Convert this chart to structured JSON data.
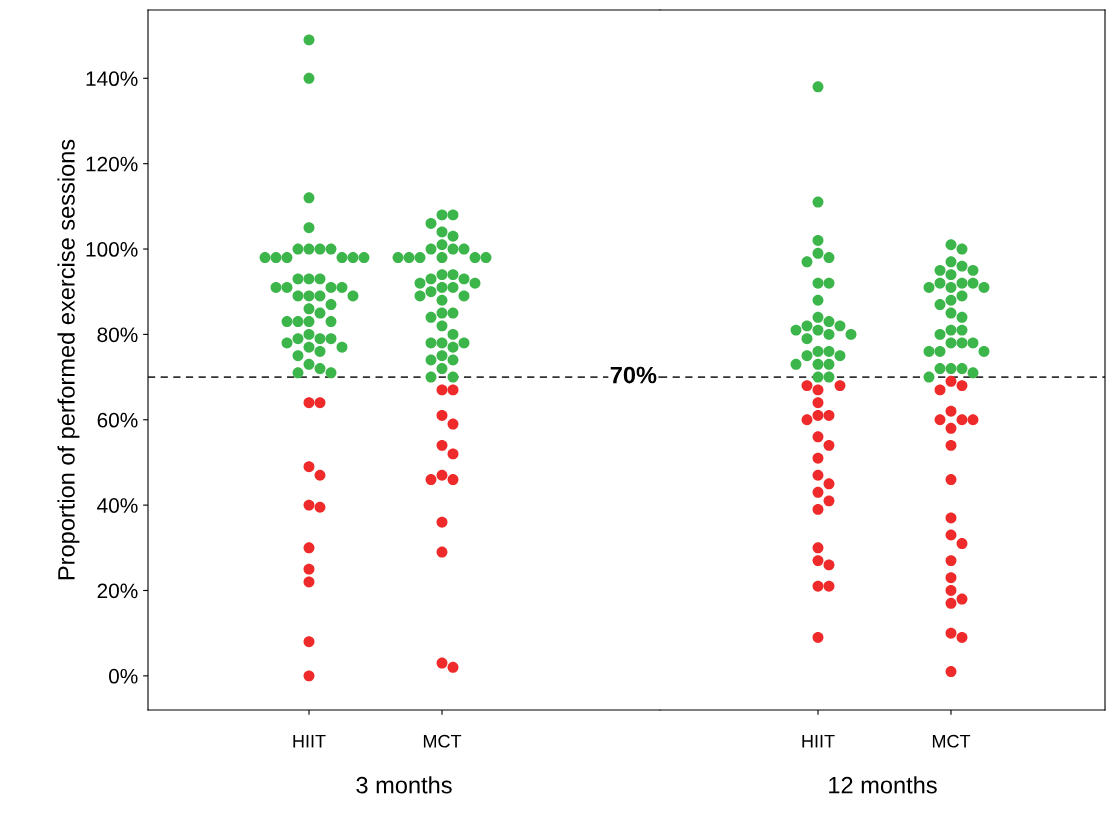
{
  "chart_data": [
    {
      "type": "scatter",
      "ylabel": "Proportion of performed exercise sessions",
      "xlabel": "3 months",
      "categories": [
        "HIIT",
        "MCT"
      ],
      "ylim": [
        -8,
        156
      ],
      "yticks": [
        {
          "value": 0,
          "label": "0%"
        },
        {
          "value": 20,
          "label": "20%"
        },
        {
          "value": 40,
          "label": "40%"
        },
        {
          "value": 60,
          "label": "60%"
        },
        {
          "value": 80,
          "label": "80%"
        },
        {
          "value": 100,
          "label": "100%"
        },
        {
          "value": 120,
          "label": "120%"
        },
        {
          "value": 140,
          "label": "140%"
        }
      ],
      "marker": "circle",
      "ref_lines": [
        {
          "axis": "y",
          "value": 70,
          "label": "70%",
          "line_style": "dashed",
          "color": "#333333"
        }
      ],
      "series": [
        {
          "color": "#3cb54a",
          "x": [
            "HIIT",
            "HIIT",
            "HIIT",
            "HIIT",
            "HIIT",
            "HIIT",
            "HIIT",
            "HIIT",
            "HIIT",
            "HIIT",
            "HIIT",
            "HIIT",
            "HIIT",
            "HIIT",
            "HIIT",
            "HIIT",
            "HIIT",
            "HIIT",
            "HIIT",
            "HIIT",
            "HIIT",
            "HIIT",
            "HIIT",
            "HIIT",
            "HIIT",
            "HIIT",
            "HIIT",
            "HIIT",
            "HIIT",
            "HIIT",
            "HIIT",
            "HIIT",
            "HIIT",
            "HIIT",
            "HIIT",
            "HIIT",
            "HIIT",
            "HIIT",
            "HIIT",
            "HIIT",
            "HIIT",
            "HIIT",
            "HIIT",
            "HIIT",
            "HIIT",
            "MCT",
            "MCT",
            "MCT",
            "MCT",
            "MCT",
            "MCT",
            "MCT",
            "MCT",
            "MCT",
            "MCT",
            "MCT",
            "MCT",
            "MCT",
            "MCT",
            "MCT",
            "MCT",
            "MCT",
            "MCT",
            "MCT",
            "MCT",
            "MCT",
            "MCT",
            "MCT",
            "MCT",
            "MCT",
            "MCT",
            "MCT",
            "MCT",
            "MCT",
            "MCT",
            "MCT",
            "MCT",
            "MCT",
            "MCT",
            "MCT",
            "MCT",
            "MCT",
            "MCT",
            "MCT",
            "MCT",
            "MCT",
            "MCT"
          ],
          "values": [
            149,
            140,
            112,
            105,
            100,
            100,
            100,
            100,
            98,
            98,
            98,
            98,
            98,
            98,
            93,
            93,
            93,
            91,
            91,
            91,
            91,
            89,
            89,
            89,
            89,
            87,
            86,
            85,
            83,
            83,
            83,
            83,
            80,
            79,
            79,
            79,
            78,
            77,
            77,
            76,
            75,
            73,
            72,
            71,
            71,
            108,
            108,
            106,
            104,
            103,
            101,
            100,
            100,
            100,
            98,
            98,
            98,
            98,
            98,
            98,
            94,
            94,
            93,
            93,
            92,
            92,
            91,
            91,
            90,
            89,
            89,
            88,
            85,
            85,
            84,
            82,
            80,
            78,
            78,
            78,
            77,
            75,
            74,
            74,
            72,
            70,
            70
          ]
        },
        {
          "color": "#ee2a2a",
          "x": [
            "HIIT",
            "HIIT",
            "HIIT",
            "HIIT",
            "HIIT",
            "HIIT",
            "HIIT",
            "HIIT",
            "HIIT",
            "HIIT",
            "HIIT",
            "MCT",
            "MCT",
            "MCT",
            "MCT",
            "MCT",
            "MCT",
            "MCT",
            "MCT",
            "MCT",
            "MCT",
            "MCT",
            "MCT",
            "MCT"
          ],
          "values": [
            64,
            64,
            49,
            47,
            40,
            39.5,
            30,
            25,
            22,
            8,
            0,
            67,
            67,
            61,
            59,
            54,
            52,
            47,
            46,
            46,
            36,
            29,
            3,
            2
          ]
        }
      ]
    },
    {
      "type": "scatter",
      "xlabel": "12 months",
      "categories": [
        "HIIT",
        "MCT"
      ],
      "ylim": [
        -8,
        156
      ],
      "tick_labels": "x",
      "marker": "circle",
      "ref_lines": [
        {
          "axis": "y",
          "value": 70,
          "line_style": "dashed",
          "color": "#333333"
        }
      ],
      "series": [
        {
          "color": "#3cb54a",
          "x": [
            "HIIT",
            "HIIT",
            "HIIT",
            "HIIT",
            "HIIT",
            "HIIT",
            "HIIT",
            "HIIT",
            "HIIT",
            "HIIT",
            "HIIT",
            "HIIT",
            "HIIT",
            "HIIT",
            "HIIT",
            "HIIT",
            "HIIT",
            "HIIT",
            "HIIT",
            "HIIT",
            "HIIT",
            "HIIT",
            "HIIT",
            "HIIT",
            "HIIT",
            "HIIT",
            "HIIT",
            "MCT",
            "MCT",
            "MCT",
            "MCT",
            "MCT",
            "MCT",
            "MCT",
            "MCT",
            "MCT",
            "MCT",
            "MCT",
            "MCT",
            "MCT",
            "MCT",
            "MCT",
            "MCT",
            "MCT",
            "MCT",
            "MCT",
            "MCT",
            "MCT",
            "MCT",
            "MCT",
            "MCT",
            "MCT",
            "MCT",
            "MCT",
            "MCT",
            "MCT",
            "MCT",
            "MCT",
            "MCT"
          ],
          "values": [
            138,
            111,
            102,
            99,
            98,
            97,
            92,
            92,
            88,
            84,
            83,
            82,
            82,
            81,
            81,
            80,
            80,
            79,
            76,
            76,
            75,
            75,
            73,
            73,
            73,
            70,
            70,
            101,
            100,
            97,
            96,
            95,
            95,
            94,
            92,
            92,
            92,
            91,
            91,
            91,
            89,
            88,
            87,
            85,
            84,
            81,
            81,
            80,
            78,
            78,
            78,
            76,
            76,
            76,
            72,
            72,
            72,
            71,
            70
          ]
        },
        {
          "color": "#ee2a2a",
          "x": [
            "HIIT",
            "HIIT",
            "HIIT",
            "HIIT",
            "HIIT",
            "HIIT",
            "HIIT",
            "HIIT",
            "HIIT",
            "HIIT",
            "HIIT",
            "HIIT",
            "HIIT",
            "HIIT",
            "HIIT",
            "HIIT",
            "HIIT",
            "HIIT",
            "HIIT",
            "HIIT",
            "HIIT",
            "MCT",
            "MCT",
            "MCT",
            "MCT",
            "MCT",
            "MCT",
            "MCT",
            "MCT",
            "MCT",
            "MCT",
            "MCT",
            "MCT",
            "MCT",
            "MCT",
            "MCT",
            "MCT",
            "MCT",
            "MCT",
            "MCT",
            "MCT",
            "MCT"
          ],
          "values": [
            68,
            68,
            67,
            64,
            61,
            61,
            60,
            56,
            54,
            51,
            47,
            45,
            43,
            41,
            39,
            30,
            27,
            26,
            21,
            21,
            9,
            69,
            68,
            67,
            62,
            60,
            60,
            60,
            58,
            54,
            46,
            37,
            33,
            31,
            27,
            23,
            20,
            18,
            17,
            10,
            9,
            1
          ]
        }
      ]
    }
  ]
}
